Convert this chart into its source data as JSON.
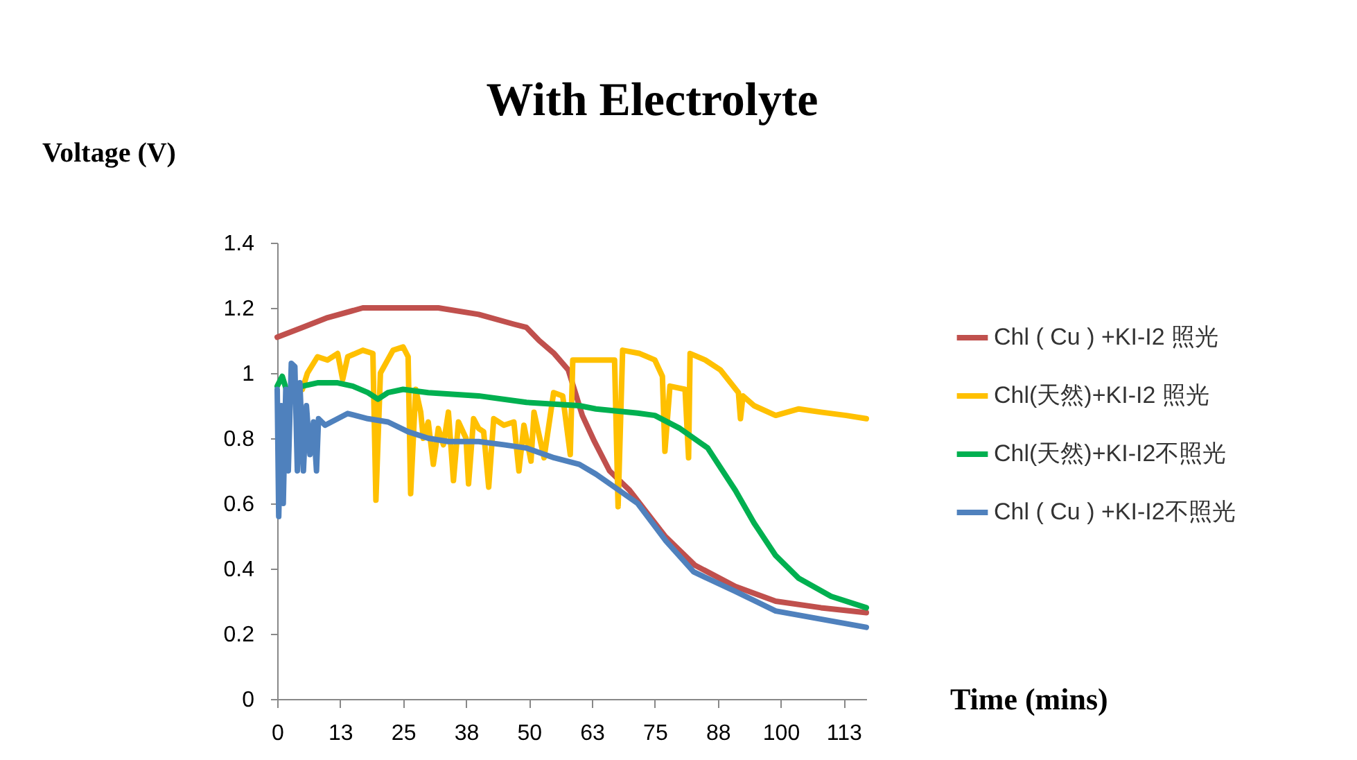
{
  "chart_data": {
    "type": "line",
    "title": "With Electrolyte",
    "ylabel": "Voltage (V)",
    "xlabel": "Time (mins)",
    "xlim": [
      0,
      117
    ],
    "xticks": [
      0,
      {
        "value": 12.5,
        "label": "13"
      },
      25,
      {
        "value": 37.5,
        "label": "38"
      },
      50,
      {
        "value": 62.5,
        "label": "63"
      },
      75,
      {
        "value": 87.5,
        "label": "88"
      },
      100,
      {
        "value": 112.5,
        "label": "113"
      }
    ],
    "ylim": [
      0,
      1.4
    ],
    "yticks": [
      0,
      0.2,
      0.4,
      0.6,
      0.8,
      1,
      1.2,
      1.4
    ],
    "grid": false,
    "legend": "right",
    "marker": "none",
    "line_style": "solid",
    "series": [
      {
        "name": "Chl ( Cu ) +KI-I2 照光",
        "color": "#c0504d",
        "x": [
          0,
          5,
          10,
          17,
          25,
          32,
          40,
          47,
          49.5,
          52,
          55,
          57.8,
          60.6,
          63,
          66,
          70,
          73,
          77,
          83,
          91,
          99,
          108,
          117
        ],
        "values": [
          1.11,
          1.14,
          1.17,
          1.2,
          1.2,
          1.2,
          1.18,
          1.15,
          1.14,
          1.1,
          1.06,
          1.01,
          0.87,
          0.79,
          0.7,
          0.64,
          0.58,
          0.5,
          0.41,
          0.345,
          0.3,
          0.28,
          0.265
        ]
      },
      {
        "name": "Chl(天然)+KI-I2 照光",
        "color": "#ffc000",
        "x": [
          5,
          6,
          8,
          10,
          12,
          13,
          14,
          17,
          19,
          19.6,
          20.5,
          23,
          25,
          26,
          26.5,
          27.5,
          28.5,
          29,
          30,
          31,
          32,
          33,
          34,
          35,
          36,
          37.5,
          38,
          39,
          40,
          41,
          42,
          43,
          45,
          47,
          48,
          49,
          50.4,
          51,
          53,
          54.9,
          56.7,
          58.2,
          58.7,
          62,
          67,
          67.7,
          68.6,
          72,
          75,
          76.5,
          77,
          78,
          81,
          81.7,
          82,
          85,
          88,
          91.6,
          92,
          92.5,
          94.7,
          99,
          103.6,
          108,
          113,
          117
        ],
        "values": [
          0.95,
          1.0,
          1.05,
          1.04,
          1.06,
          0.98,
          1.05,
          1.07,
          1.06,
          0.61,
          1.0,
          1.07,
          1.08,
          1.05,
          0.63,
          0.95,
          0.88,
          0.8,
          0.85,
          0.72,
          0.83,
          0.78,
          0.88,
          0.67,
          0.85,
          0.8,
          0.66,
          0.86,
          0.83,
          0.82,
          0.65,
          0.86,
          0.84,
          0.85,
          0.7,
          0.84,
          0.73,
          0.88,
          0.74,
          0.94,
          0.93,
          0.75,
          1.04,
          1.04,
          1.04,
          0.59,
          1.07,
          1.06,
          1.04,
          0.99,
          0.76,
          0.96,
          0.95,
          0.74,
          1.06,
          1.04,
          1.01,
          0.94,
          0.86,
          0.93,
          0.9,
          0.87,
          0.89,
          0.88,
          0.87,
          0.86
        ]
      },
      {
        "name": "Chl(天然)+KI-I2不照光",
        "color": "#00b050",
        "x": [
          0,
          1,
          2,
          5,
          8,
          12,
          15,
          18,
          20,
          22,
          25,
          30,
          40,
          49.5,
          60,
          63.3,
          71.6,
          75,
          80,
          85.5,
          91,
          94.7,
          99,
          103.6,
          110,
          117
        ],
        "values": [
          0.96,
          0.99,
          0.94,
          0.96,
          0.97,
          0.97,
          0.96,
          0.94,
          0.92,
          0.94,
          0.95,
          0.94,
          0.93,
          0.91,
          0.9,
          0.89,
          0.877,
          0.87,
          0.83,
          0.77,
          0.64,
          0.54,
          0.44,
          0.37,
          0.315,
          0.28
        ]
      },
      {
        "name": "Chl ( Cu ) +KI-I2不照光",
        "color": "#4f81bd",
        "x": [
          0,
          0.3,
          0.8,
          1.2,
          1.7,
          2.2,
          2.8,
          3.5,
          4,
          4.5,
          5.2,
          5.8,
          6.5,
          7.2,
          7.8,
          8.2,
          9.5,
          14,
          18,
          22,
          26,
          30,
          34,
          40,
          45,
          49.5,
          55,
          60,
          63.3,
          67,
          71.6,
          77.2,
          82.7,
          91,
          99,
          108,
          117
        ],
        "values": [
          0.95,
          0.56,
          0.9,
          0.6,
          0.95,
          0.7,
          1.03,
          1.02,
          0.7,
          0.97,
          0.7,
          0.9,
          0.75,
          0.85,
          0.7,
          0.86,
          0.84,
          0.876,
          0.86,
          0.85,
          0.82,
          0.8,
          0.79,
          0.79,
          0.78,
          0.77,
          0.74,
          0.72,
          0.69,
          0.65,
          0.6,
          0.485,
          0.39,
          0.33,
          0.27,
          0.245,
          0.22
        ]
      }
    ]
  }
}
